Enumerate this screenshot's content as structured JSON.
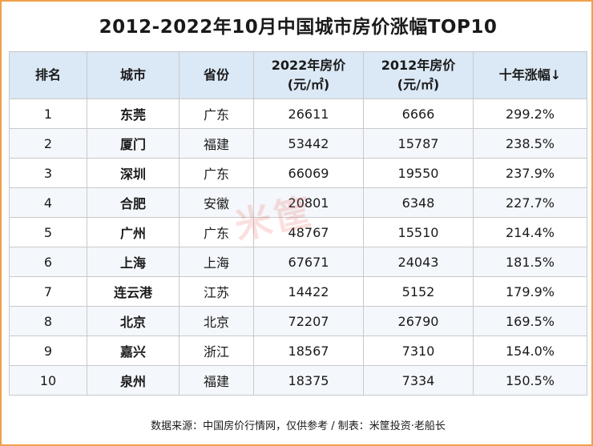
{
  "title": "2012-2022年10月中国城市房价涨幅TOP10",
  "headers": {
    "rank": "排名",
    "city": "城市",
    "province": "省份",
    "price2022_line1": "2022年房价",
    "price2022_line2": "(元/㎡)",
    "price2012_line1": "2012年房价",
    "price2012_line2": "(元/㎡)",
    "growth": "十年涨幅↓"
  },
  "rows": [
    {
      "rank": "1",
      "city": "东莞",
      "province": "广东",
      "price2022": "26611",
      "price2012": "6666",
      "growth": "299.2%"
    },
    {
      "rank": "2",
      "city": "厦门",
      "province": "福建",
      "price2022": "53442",
      "price2012": "15787",
      "growth": "238.5%"
    },
    {
      "rank": "3",
      "city": "深圳",
      "province": "广东",
      "price2022": "66069",
      "price2012": "19550",
      "growth": "237.9%"
    },
    {
      "rank": "4",
      "city": "合肥",
      "province": "安徽",
      "price2022": "20801",
      "price2012": "6348",
      "growth": "227.7%"
    },
    {
      "rank": "5",
      "city": "广州",
      "province": "广东",
      "price2022": "48767",
      "price2012": "15510",
      "growth": "214.4%"
    },
    {
      "rank": "6",
      "city": "上海",
      "province": "上海",
      "price2022": "67671",
      "price2012": "24043",
      "growth": "181.5%"
    },
    {
      "rank": "7",
      "city": "连云港",
      "province": "江苏",
      "price2022": "14422",
      "price2012": "5152",
      "growth": "179.9%"
    },
    {
      "rank": "8",
      "city": "北京",
      "province": "北京",
      "price2022": "72207",
      "price2012": "26790",
      "growth": "169.5%"
    },
    {
      "rank": "9",
      "city": "嘉兴",
      "province": "浙江",
      "price2022": "18567",
      "price2012": "7310",
      "growth": "154.0%"
    },
    {
      "rank": "10",
      "city": "泉州",
      "province": "福建",
      "price2022": "18375",
      "price2012": "7334",
      "growth": "150.5%"
    }
  ],
  "footer": "数据来源：中国房价行情网，仅供参考 / 制表：米筐投资·老船长",
  "watermark": "米筐",
  "colors": {
    "border": "#f0a04b",
    "header_bg": "#dbe8f5",
    "stripe_bg": "#f4f7fb",
    "watermark": "#e4574c"
  },
  "chart_data": {
    "type": "table",
    "title": "2012-2022年10月中国城市房价涨幅TOP10",
    "columns": [
      "排名",
      "城市",
      "省份",
      "2022年房价(元/㎡)",
      "2012年房价(元/㎡)",
      "十年涨幅↓"
    ],
    "rows": [
      [
        1,
        "东莞",
        "广东",
        26611,
        6666,
        "299.2%"
      ],
      [
        2,
        "厦门",
        "福建",
        53442,
        15787,
        "238.5%"
      ],
      [
        3,
        "深圳",
        "广东",
        66069,
        19550,
        "237.9%"
      ],
      [
        4,
        "合肥",
        "安徽",
        20801,
        6348,
        "227.7%"
      ],
      [
        5,
        "广州",
        "广东",
        48767,
        15510,
        "214.4%"
      ],
      [
        6,
        "上海",
        "上海",
        67671,
        24043,
        "181.5%"
      ],
      [
        7,
        "连云港",
        "江苏",
        14422,
        5152,
        "179.9%"
      ],
      [
        8,
        "北京",
        "北京",
        72207,
        26790,
        "169.5%"
      ],
      [
        9,
        "嘉兴",
        "浙江",
        18567,
        7310,
        "154.0%"
      ],
      [
        10,
        "泉州",
        "福建",
        18375,
        7334,
        "150.5%"
      ]
    ]
  }
}
